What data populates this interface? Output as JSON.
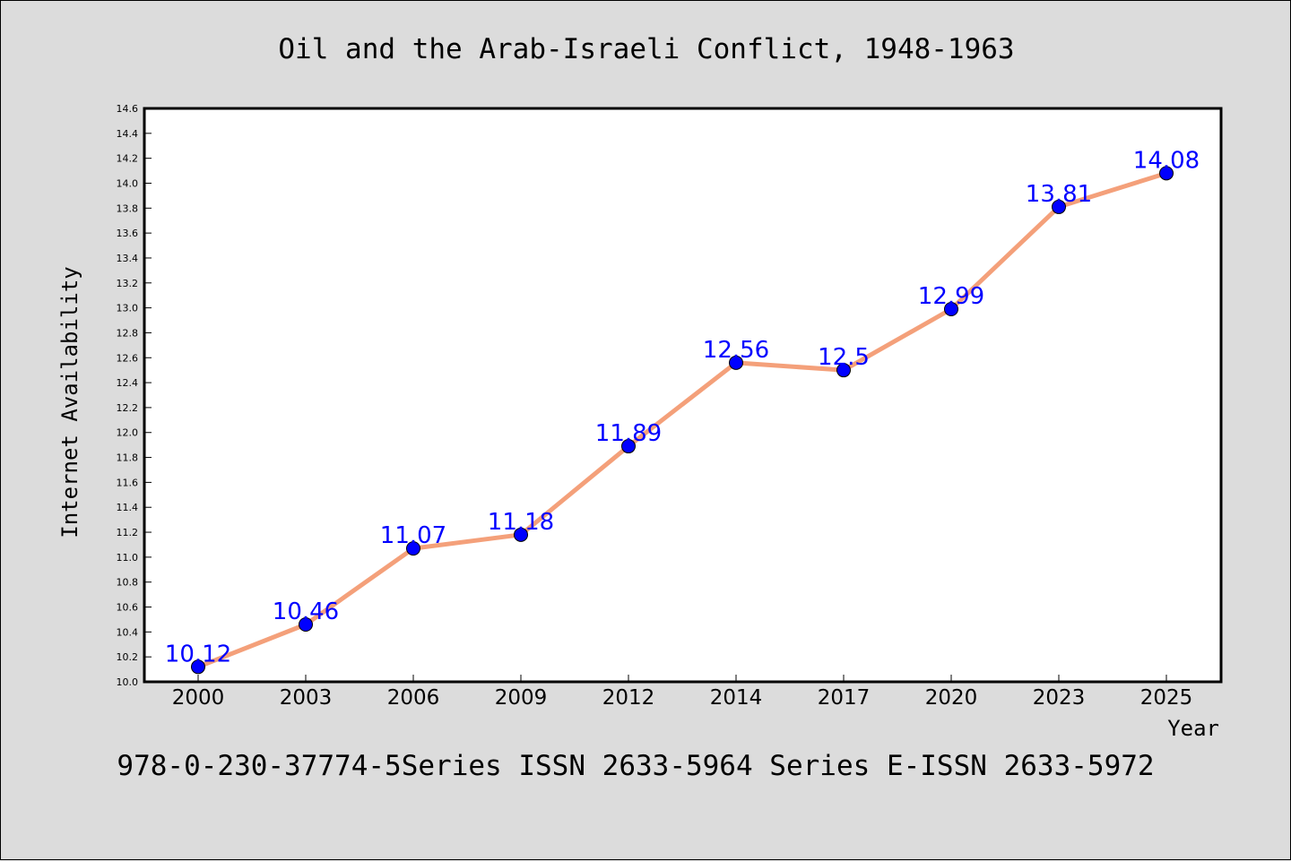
{
  "chart_data": {
    "type": "line",
    "title": "Oil and the Arab-Israeli Conflict, 1948-1963",
    "xlabel": "Year",
    "ylabel": "Internet Availability",
    "categories": [
      "2000",
      "2003",
      "2006",
      "2009",
      "2012",
      "2014",
      "2017",
      "2020",
      "2023",
      "2025"
    ],
    "series": [
      {
        "values": [
          10.12,
          10.46,
          11.07,
          11.18,
          11.89,
          12.56,
          12.5,
          12.99,
          13.81,
          14.08
        ],
        "labels": [
          "10.12",
          "10.46",
          "11.07",
          "11.18",
          "11.89",
          "12.56",
          "12.5",
          "12.99",
          "13.81",
          "14.08"
        ],
        "line_color": "#f4a07a",
        "marker_color": "#0000ff"
      }
    ],
    "ylim": [
      10.0,
      14.6
    ],
    "yticks": [
      "10.0",
      "10.2",
      "10.4",
      "10.6",
      "10.8",
      "11.0",
      "11.2",
      "11.4",
      "11.6",
      "11.8",
      "12.0",
      "12.2",
      "12.4",
      "12.6",
      "12.8",
      "13.0",
      "13.2",
      "13.4",
      "13.6",
      "13.8",
      "14.0",
      "14.2",
      "14.4",
      "14.6"
    ],
    "grid": false,
    "legend": "none"
  },
  "footer": "978-0-230-37774-5Series ISSN 2633-5964 Series E-ISSN 2633-5972",
  "colors": {
    "background": "#dcdcdc",
    "plot_background": "#ffffff"
  }
}
